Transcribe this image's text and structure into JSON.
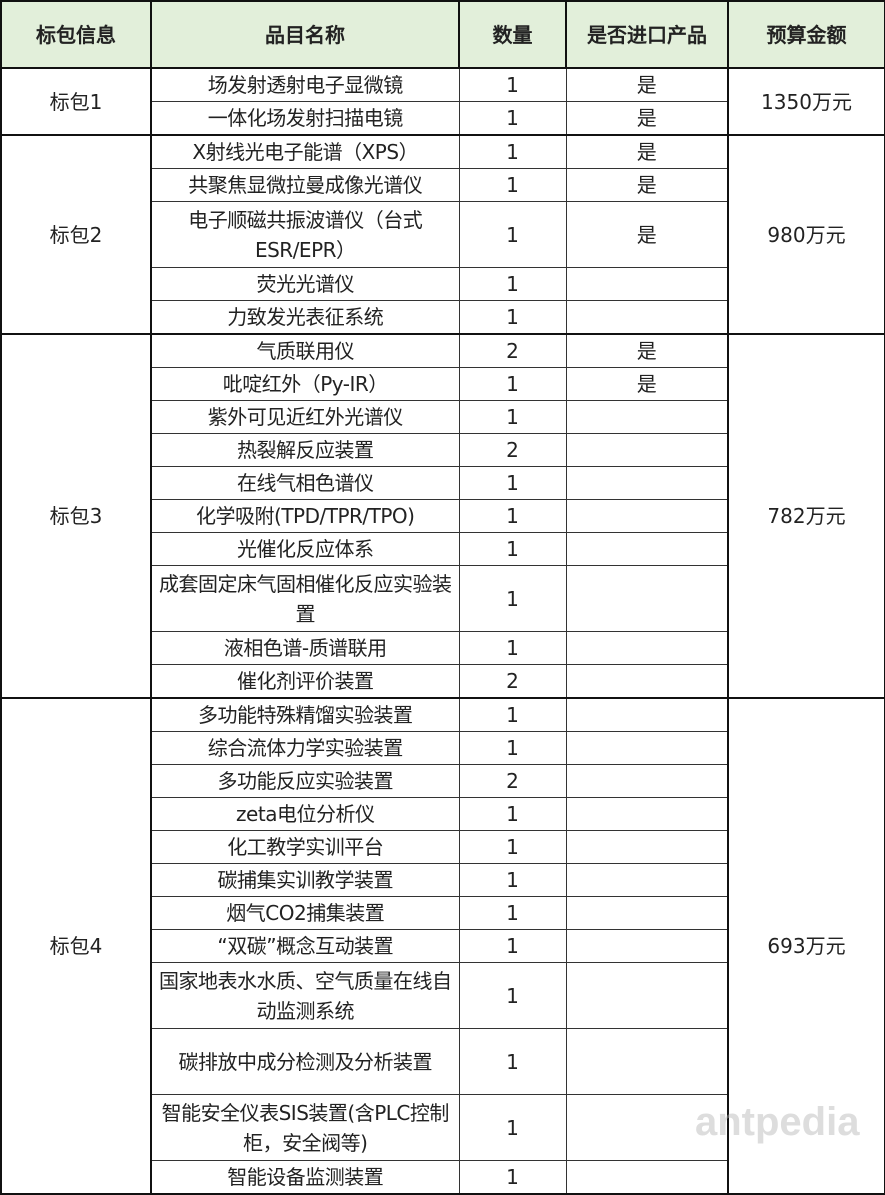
{
  "header": {
    "package": "标包信息",
    "item": "品目名称",
    "qty": "数量",
    "imported": "是否进口产品",
    "budget": "预算金额"
  },
  "packages": [
    {
      "label": "标包1",
      "budget": "1350万元",
      "items": [
        {
          "name": "场发射透射电子显微镜",
          "qty": "1",
          "imported": "是"
        },
        {
          "name": "一体化场发射扫描电镜",
          "qty": "1",
          "imported": "是"
        }
      ]
    },
    {
      "label": "标包2",
      "budget": "980万元",
      "items": [
        {
          "name": "X射线光电子能谱（XPS）",
          "qty": "1",
          "imported": "是"
        },
        {
          "name": "共聚焦显微拉曼成像光谱仪",
          "qty": "1",
          "imported": "是"
        },
        {
          "name": "电子顺磁共振波谱仪（台式ESR/EPR）",
          "qty": "1",
          "imported": "是",
          "tall": true
        },
        {
          "name": "荧光光谱仪",
          "qty": "1",
          "imported": ""
        },
        {
          "name": "力致发光表征系统",
          "qty": "1",
          "imported": ""
        }
      ]
    },
    {
      "label": "标包3",
      "budget": "782万元",
      "items": [
        {
          "name": "气质联用仪",
          "qty": "2",
          "imported": "是"
        },
        {
          "name": "吡啶红外（Py-IR）",
          "qty": "1",
          "imported": "是"
        },
        {
          "name": "紫外可见近红外光谱仪",
          "qty": "1",
          "imported": ""
        },
        {
          "name": "热裂解反应装置",
          "qty": "2",
          "imported": ""
        },
        {
          "name": "在线气相色谱仪",
          "qty": "1",
          "imported": ""
        },
        {
          "name": "化学吸附(TPD/TPR/TPO)",
          "qty": "1",
          "imported": ""
        },
        {
          "name": "光催化反应体系",
          "qty": "1",
          "imported": ""
        },
        {
          "name": "成套固定床气固相催化反应实验装置",
          "qty": "1",
          "imported": "",
          "tall": true
        },
        {
          "name": "液相色谱-质谱联用",
          "qty": "1",
          "imported": ""
        },
        {
          "name": "催化剂评价装置",
          "qty": "2",
          "imported": ""
        }
      ]
    },
    {
      "label": "标包4",
      "budget": "693万元",
      "items": [
        {
          "name": "多功能特殊精馏实验装置",
          "qty": "1",
          "imported": ""
        },
        {
          "name": "综合流体力学实验装置",
          "qty": "1",
          "imported": ""
        },
        {
          "name": "多功能反应实验装置",
          "qty": "2",
          "imported": ""
        },
        {
          "name": "zeta电位分析仪",
          "qty": "1",
          "imported": ""
        },
        {
          "name": "化工教学实训平台",
          "qty": "1",
          "imported": ""
        },
        {
          "name": "碳捕集实训教学装置",
          "qty": "1",
          "imported": ""
        },
        {
          "name": "烟气CO2捕集装置",
          "qty": "1",
          "imported": ""
        },
        {
          "name": "“双碳”概念互动装置",
          "qty": "1",
          "imported": ""
        },
        {
          "name": "国家地表水水质、空气质量在线自动监测系统",
          "qty": "1",
          "imported": "",
          "tall": true
        },
        {
          "name": "碳排放中成分检测及分析装置",
          "qty": "1",
          "imported": "",
          "tall": true
        },
        {
          "name": "智能安全仪表SIS装置(含PLC控制柜，安全阀等)",
          "qty": "1",
          "imported": "",
          "tall": true
        },
        {
          "name": "智能设备监测装置",
          "qty": "1",
          "imported": ""
        }
      ]
    }
  ],
  "watermark": "antpedia"
}
